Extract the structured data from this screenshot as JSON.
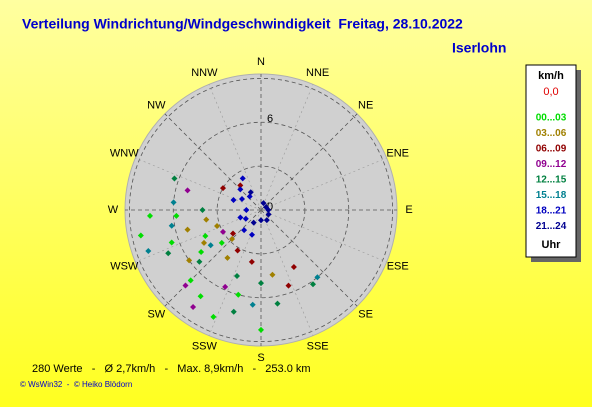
{
  "chart_data": {
    "type": "polar-scatter",
    "title": "Verteilung Windrichtung/Windgeschwindigkeit  Freitag, 28.10.2022",
    "subtitle": "Iserlohn",
    "directions": [
      "N",
      "NNE",
      "NE",
      "ENE",
      "E",
      "ESE",
      "SE",
      "SSE",
      "S",
      "SSW",
      "SW",
      "WSW",
      "W",
      "WNW",
      "NW",
      "NNW"
    ],
    "rlim": [
      0,
      9.3
    ],
    "rticks": [
      0,
      6
    ],
    "rgrid": [
      3,
      6,
      9
    ],
    "legend_title": "km/h",
    "calm_label": "0,0",
    "legend_footer": "Uhr",
    "series": [
      {
        "name": "00...03",
        "color": "#00dd00",
        "directions": [
          267,
          180,
          204,
          266,
          258,
          250,
          235,
          225,
          215,
          245,
          195,
          230
        ],
        "values": [
          7.6,
          8.2,
          8.0,
          5.8,
          8.4,
          6.5,
          5.0,
          6.8,
          7.2,
          4.2,
          6.0,
          3.5
        ]
      },
      {
        "name": "03...06",
        "color": "#a08000",
        "directions": [
          240,
          250,
          225,
          260,
          215,
          170,
          235,
          255
        ],
        "values": [
          4.5,
          3.2,
          2.8,
          3.8,
          4.0,
          4.5,
          6.0,
          5.2
        ]
      },
      {
        "name": "06...09",
        "color": "#900000",
        "directions": [
          300,
          320,
          230,
          210,
          190,
          150,
          160
        ],
        "values": [
          3.0,
          2.2,
          2.5,
          3.2,
          3.6,
          4.5,
          5.5
        ]
      },
      {
        "name": "09...12",
        "color": "#900090",
        "directions": [
          205,
          225,
          215,
          240,
          285
        ],
        "values": [
          5.8,
          7.3,
          8.1,
          3.0,
          5.2
        ]
      },
      {
        "name": "12...15",
        "color": "#008040",
        "directions": [
          270,
          245,
          230,
          200,
          180,
          290,
          195,
          170,
          145
        ],
        "values": [
          4.0,
          7.0,
          5.5,
          4.8,
          5.0,
          6.3,
          7.2,
          6.5,
          6.2
        ]
      },
      {
        "name": "15...18",
        "color": "#008090",
        "directions": [
          260,
          275,
          250,
          235,
          185,
          140
        ],
        "values": [
          6.2,
          6.0,
          8.2,
          4.2,
          6.5,
          6.0
        ]
      },
      {
        "name": "18...21",
        "color": "#0000c0",
        "directions": [
          330,
          300,
          320,
          270,
          250,
          220,
          200,
          315,
          290,
          240
        ],
        "values": [
          2.5,
          1.5,
          1.2,
          1.0,
          1.5,
          1.8,
          1.8,
          2.0,
          2.0,
          1.2
        ]
      },
      {
        "name": "21...24",
        "color": "#000090",
        "directions": [
          150,
          120,
          180,
          210,
          60,
          90,
          330,
          20
        ],
        "values": [
          0.8,
          0.6,
          0.7,
          1.0,
          0.4,
          0.5,
          1.4,
          0.5
        ]
      }
    ],
    "footer": "280 Werte   -   Ø 2,7km/h   -   Max. 8,9km/h   -   253.0 km",
    "credit": "© WsWin32  -  © Heiko Blödorn"
  }
}
